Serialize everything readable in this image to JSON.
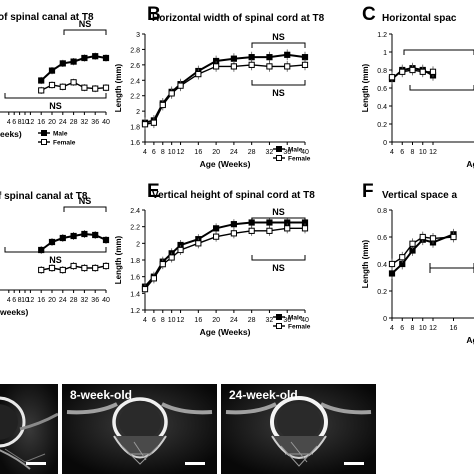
{
  "chart_data": [
    {
      "panel": "A",
      "type": "line",
      "title": "of spinal canal at T8",
      "x": [
        4,
        6,
        8,
        10,
        12,
        16,
        20,
        24,
        28,
        32,
        36,
        40
      ],
      "xticks_visible": [
        "20",
        "24",
        "28",
        "32",
        "36",
        "40"
      ],
      "xlabel": "eeks)",
      "legend": [
        "Male",
        "Female"
      ],
      "legend_position": "bottom-right",
      "annotations": [
        "NS",
        "NS"
      ],
      "series": [
        {
          "name": "Male",
          "marker": "filled-square",
          "values": [
            null,
            null,
            null,
            null,
            null,
            0.55,
            0.66,
            0.74,
            0.76,
            0.8,
            0.82,
            0.8
          ]
        },
        {
          "name": "Female",
          "marker": "open-square",
          "values": [
            null,
            null,
            null,
            null,
            null,
            0.44,
            0.5,
            0.48,
            0.53,
            0.47,
            0.46,
            0.47
          ]
        }
      ]
    },
    {
      "panel": "B",
      "type": "line",
      "title": "Horizontal width of spinal cord at T8",
      "x": [
        4,
        6,
        8,
        10,
        12,
        16,
        20,
        24,
        28,
        32,
        36,
        40
      ],
      "xlabel": "Age (Weeks)",
      "ylabel": "Length (mm)",
      "ylim": [
        1.6,
        3.0
      ],
      "yticks": [
        "1.6",
        "1.8",
        "2",
        "2.2",
        "2.4",
        "2.6",
        "2.8",
        "3"
      ],
      "legend": [
        "Male",
        "Female"
      ],
      "legend_position": "bottom-right",
      "annotations": [
        "NS",
        "NS"
      ],
      "series": [
        {
          "name": "Male",
          "marker": "filled-square",
          "values": [
            1.85,
            1.88,
            2.1,
            2.25,
            2.35,
            2.52,
            2.65,
            2.68,
            2.7,
            2.7,
            2.73,
            2.7
          ]
        },
        {
          "name": "Female",
          "marker": "open-square",
          "values": [
            1.83,
            1.85,
            2.08,
            2.23,
            2.33,
            2.48,
            2.58,
            2.58,
            2.6,
            2.58,
            2.58,
            2.6
          ]
        }
      ]
    },
    {
      "panel": "C",
      "type": "line",
      "title": "Horizontal spac",
      "x": [
        4,
        6,
        8,
        10,
        12
      ],
      "xlabel": "Ag",
      "ylabel": "Length (mm)",
      "ylim": [
        0,
        1.2
      ],
      "yticks": [
        "0",
        "0.2",
        "0.4",
        "0.6",
        "0.8",
        "1",
        "1.2"
      ],
      "series": [
        {
          "name": "Male",
          "marker": "filled-square",
          "values": [
            0.7,
            0.8,
            0.82,
            0.8,
            0.74
          ]
        },
        {
          "name": "Female",
          "marker": "open-square",
          "values": [
            0.72,
            0.78,
            0.8,
            0.78,
            0.78
          ]
        }
      ]
    },
    {
      "panel": "D",
      "type": "line",
      "title": "f spinal canal at T8",
      "x": [
        4,
        6,
        8,
        10,
        12,
        16,
        20,
        24,
        28,
        32,
        36,
        40
      ],
      "xticks_visible": [
        "20",
        "24",
        "28",
        "32",
        "36",
        "40"
      ],
      "xlabel": "weeks)",
      "annotations": [
        "NS",
        "NS"
      ],
      "series": [
        {
          "name": "Male",
          "marker": "filled-square",
          "values": [
            null,
            null,
            null,
            null,
            null,
            0.6,
            0.68,
            0.72,
            0.74,
            0.76,
            0.75,
            0.7
          ]
        },
        {
          "name": "Female",
          "marker": "open-square",
          "values": [
            null,
            null,
            null,
            null,
            null,
            0.4,
            0.42,
            0.4,
            0.44,
            0.42,
            0.42,
            0.44
          ]
        }
      ]
    },
    {
      "panel": "E",
      "type": "line",
      "title": "Vertical height of spinal cord at T8",
      "x": [
        4,
        6,
        8,
        10,
        12,
        16,
        20,
        24,
        28,
        32,
        36,
        40
      ],
      "xlabel": "Age (Weeks)",
      "ylabel": "Length (mm)",
      "ylim": [
        1.2,
        2.4
      ],
      "yticks": [
        "1.2",
        "1.4",
        "1.6",
        "1.8",
        "2",
        "2.2",
        "2.4"
      ],
      "legend": [
        "Male",
        "Female"
      ],
      "legend_position": "bottom-right",
      "annotations": [
        "NS",
        "NS"
      ],
      "series": [
        {
          "name": "Male",
          "marker": "filled-square",
          "values": [
            1.48,
            1.6,
            1.78,
            1.88,
            1.98,
            2.05,
            2.18,
            2.23,
            2.25,
            2.25,
            2.25,
            2.25
          ]
        },
        {
          "name": "Female",
          "marker": "open-square",
          "values": [
            1.45,
            1.58,
            1.75,
            1.83,
            1.92,
            2.0,
            2.08,
            2.12,
            2.15,
            2.15,
            2.18,
            2.18
          ]
        }
      ]
    },
    {
      "panel": "F",
      "type": "line",
      "title": "Vertical space a",
      "x": [
        4,
        6,
        8,
        10,
        12,
        16
      ],
      "xlabel": "Ag",
      "ylabel": "Length (mm)",
      "ylim": [
        0,
        0.8
      ],
      "yticks": [
        "0",
        "0.2",
        "0.4",
        "0.6",
        "0.8"
      ],
      "series": [
        {
          "name": "Male",
          "marker": "filled-square",
          "values": [
            0.33,
            0.4,
            0.5,
            0.58,
            0.56,
            0.62
          ]
        },
        {
          "name": "Female",
          "marker": "open-square",
          "values": [
            0.4,
            0.45,
            0.55,
            0.6,
            0.59,
            0.6
          ]
        }
      ]
    }
  ],
  "ct_images": [
    {
      "label": ""
    },
    {
      "label": "8-week-old"
    },
    {
      "label": "24-week-old"
    }
  ]
}
